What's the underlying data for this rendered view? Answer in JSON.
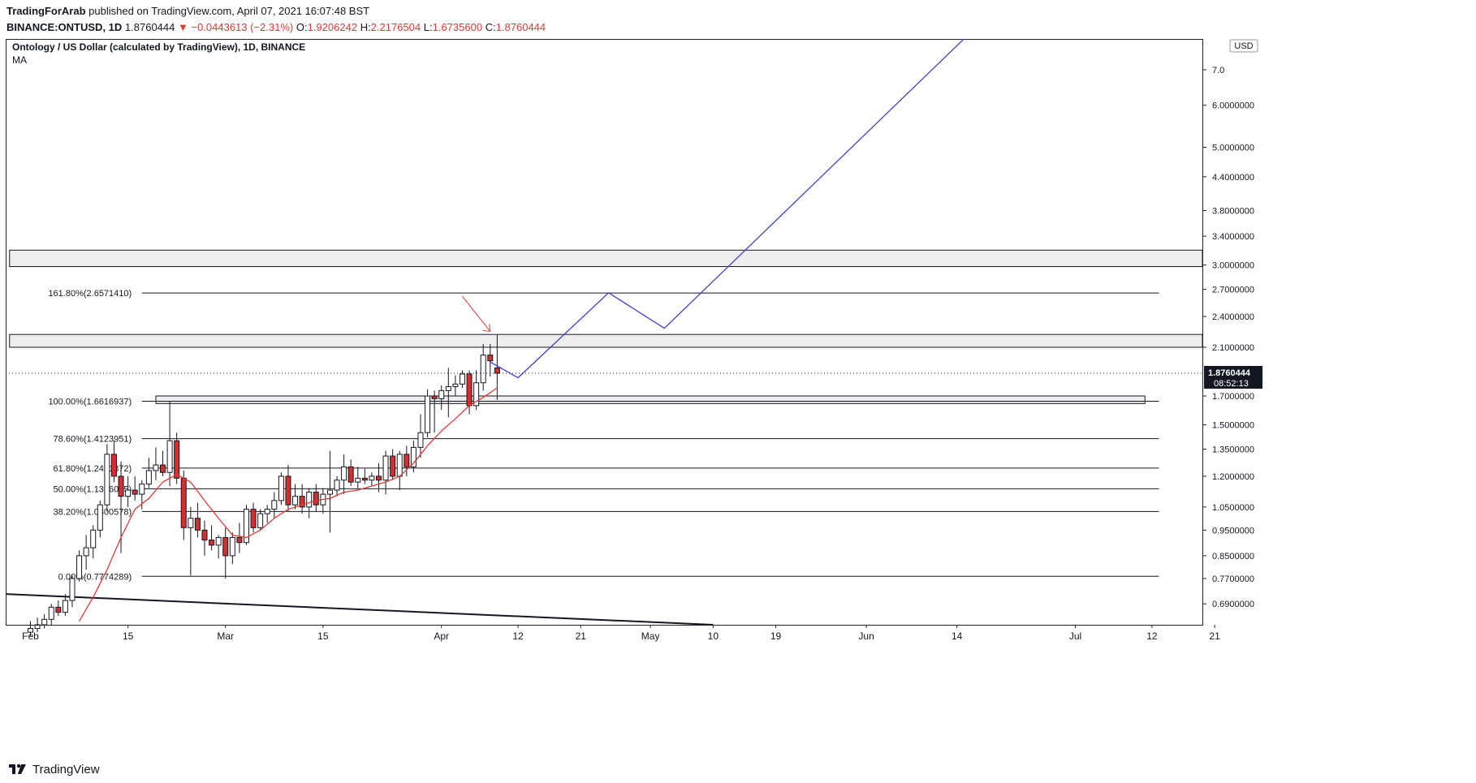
{
  "header": {
    "publisher": "TradingForArab",
    "published_text": "published on TradingView.com, April 07, 2021 16:07:48 BST",
    "symbol": "BINANCE:ONTUSD, 1D",
    "last": "1.8760444",
    "change": "▼ −0.0443613 (−2.31%)",
    "o_label": "O:",
    "o_value": "1.9206242",
    "h_label": "H:",
    "h_value": "2.2176504",
    "l_label": "L:",
    "l_value": "1.6735600",
    "c_label": "C:",
    "c_value": "1.8760444"
  },
  "legend": {
    "title": "Ontology / US Dollar (calculated by TradingView), 1D, BINANCE",
    "indicator": "MA"
  },
  "footer": {
    "brand": "TradingView"
  },
  "colors": {
    "up": "#ffffff",
    "down": "#d32f2f",
    "wick": "#131722",
    "ma": "#e53935",
    "projection": "#3f3fd6",
    "arrow": "#e53935",
    "fib": "#131722",
    "zone_fill": "#eeeeee",
    "price_badge": "#131722"
  },
  "chart_data": {
    "type": "candlestick",
    "symbol": "ONTUSD",
    "scale": "log",
    "ylim": [
      0.63,
      8.0
    ],
    "currency_label": "USD",
    "y_ticks": [
      7.0,
      6.0,
      5.0,
      4.4,
      3.8,
      3.4,
      3.0,
      2.7,
      2.4,
      2.1,
      1.7,
      1.5,
      1.35,
      1.2,
      1.05,
      0.95,
      0.85,
      0.77,
      0.69
    ],
    "y_tick_labels": [
      "7.0",
      "6.0000000",
      "5.0000000",
      "4.4000000",
      "3.8000000",
      "3.4000000",
      "3.0000000",
      "2.7000000",
      "2.4000000",
      "2.1000000",
      "1.7000000",
      "1.5000000",
      "1.3500000",
      "1.2000000",
      "1.0500000",
      "0.9500000",
      "0.8500000",
      "0.7700000",
      "0.6900000"
    ],
    "x_ticks": [
      {
        "date": "2021-02-01",
        "label": "Feb"
      },
      {
        "date": "2021-02-15",
        "label": "15"
      },
      {
        "date": "2021-03-01",
        "label": "Mar"
      },
      {
        "date": "2021-03-15",
        "label": "15"
      },
      {
        "date": "2021-04-01",
        "label": "Apr"
      },
      {
        "date": "2021-04-12",
        "label": "12"
      },
      {
        "date": "2021-04-21",
        "label": "21"
      },
      {
        "date": "2021-05-01",
        "label": "May"
      },
      {
        "date": "2021-05-10",
        "label": "10"
      },
      {
        "date": "2021-05-19",
        "label": "19"
      },
      {
        "date": "2021-06-01",
        "label": "Jun"
      },
      {
        "date": "2021-06-14",
        "label": "14"
      },
      {
        "date": "2021-07-01",
        "label": "Jul"
      },
      {
        "date": "2021-07-12",
        "label": "12"
      },
      {
        "date": "2021-07-21",
        "label": "21"
      }
    ],
    "last_price": {
      "value": 1.8760444,
      "label": "1.8760444",
      "countdown": "08:52:13"
    },
    "candles": [
      {
        "date": "2021-02-01",
        "o": 0.61,
        "h": 0.64,
        "l": 0.6,
        "c": 0.62
      },
      {
        "date": "2021-02-02",
        "o": 0.62,
        "h": 0.65,
        "l": 0.61,
        "c": 0.63
      },
      {
        "date": "2021-02-03",
        "o": 0.63,
        "h": 0.66,
        "l": 0.62,
        "c": 0.645
      },
      {
        "date": "2021-02-04",
        "o": 0.645,
        "h": 0.69,
        "l": 0.63,
        "c": 0.68
      },
      {
        "date": "2021-02-05",
        "o": 0.68,
        "h": 0.7,
        "l": 0.655,
        "c": 0.665
      },
      {
        "date": "2021-02-06",
        "o": 0.665,
        "h": 0.72,
        "l": 0.655,
        "c": 0.7
      },
      {
        "date": "2021-02-07",
        "o": 0.7,
        "h": 0.78,
        "l": 0.68,
        "c": 0.77
      },
      {
        "date": "2021-02-08",
        "o": 0.77,
        "h": 0.87,
        "l": 0.76,
        "c": 0.85
      },
      {
        "date": "2021-02-09",
        "o": 0.85,
        "h": 0.93,
        "l": 0.8,
        "c": 0.88
      },
      {
        "date": "2021-02-10",
        "o": 0.88,
        "h": 0.97,
        "l": 0.84,
        "c": 0.95
      },
      {
        "date": "2021-02-11",
        "o": 0.95,
        "h": 1.08,
        "l": 0.92,
        "c": 1.06
      },
      {
        "date": "2021-02-12",
        "o": 1.06,
        "h": 1.38,
        "l": 1.03,
        "c": 1.32
      },
      {
        "date": "2021-02-13",
        "o": 1.32,
        "h": 1.4,
        "l": 1.17,
        "c": 1.2
      },
      {
        "date": "2021-02-14",
        "o": 1.2,
        "h": 1.28,
        "l": 0.86,
        "c": 1.1
      },
      {
        "date": "2021-02-15",
        "o": 1.1,
        "h": 1.2,
        "l": 1.05,
        "c": 1.13
      },
      {
        "date": "2021-02-16",
        "o": 1.13,
        "h": 1.2,
        "l": 1.08,
        "c": 1.11
      },
      {
        "date": "2021-02-17",
        "o": 1.11,
        "h": 1.18,
        "l": 1.04,
        "c": 1.16
      },
      {
        "date": "2021-02-18",
        "o": 1.16,
        "h": 1.3,
        "l": 1.14,
        "c": 1.23
      },
      {
        "date": "2021-02-19",
        "o": 1.23,
        "h": 1.36,
        "l": 1.18,
        "c": 1.26
      },
      {
        "date": "2021-02-20",
        "o": 1.26,
        "h": 1.34,
        "l": 1.2,
        "c": 1.22
      },
      {
        "date": "2021-02-21",
        "o": 1.22,
        "h": 1.66,
        "l": 1.15,
        "c": 1.4
      },
      {
        "date": "2021-02-22",
        "o": 1.4,
        "h": 1.45,
        "l": 1.16,
        "c": 1.19
      },
      {
        "date": "2021-02-23",
        "o": 1.19,
        "h": 1.23,
        "l": 0.91,
        "c": 0.96
      },
      {
        "date": "2021-02-24",
        "o": 0.96,
        "h": 1.05,
        "l": 0.78,
        "c": 1.0
      },
      {
        "date": "2021-02-25",
        "o": 1.0,
        "h": 1.07,
        "l": 0.92,
        "c": 0.95
      },
      {
        "date": "2021-02-26",
        "o": 0.95,
        "h": 0.99,
        "l": 0.85,
        "c": 0.91
      },
      {
        "date": "2021-02-27",
        "o": 0.91,
        "h": 0.97,
        "l": 0.87,
        "c": 0.89
      },
      {
        "date": "2021-02-28",
        "o": 0.89,
        "h": 0.93,
        "l": 0.84,
        "c": 0.92
      },
      {
        "date": "2021-03-01",
        "o": 0.92,
        "h": 0.96,
        "l": 0.77,
        "c": 0.85
      },
      {
        "date": "2021-03-02",
        "o": 0.85,
        "h": 0.94,
        "l": 0.82,
        "c": 0.92
      },
      {
        "date": "2021-03-03",
        "o": 0.92,
        "h": 0.98,
        "l": 0.86,
        "c": 0.9
      },
      {
        "date": "2021-03-04",
        "o": 0.9,
        "h": 1.06,
        "l": 0.89,
        "c": 1.04
      },
      {
        "date": "2021-03-05",
        "o": 1.04,
        "h": 1.07,
        "l": 0.94,
        "c": 0.96
      },
      {
        "date": "2021-03-06",
        "o": 0.96,
        "h": 1.04,
        "l": 0.95,
        "c": 1.02
      },
      {
        "date": "2021-03-07",
        "o": 1.02,
        "h": 1.06,
        "l": 0.98,
        "c": 1.04
      },
      {
        "date": "2021-03-08",
        "o": 1.04,
        "h": 1.12,
        "l": 1.0,
        "c": 1.08
      },
      {
        "date": "2021-03-09",
        "o": 1.08,
        "h": 1.22,
        "l": 1.06,
        "c": 1.2
      },
      {
        "date": "2021-03-10",
        "o": 1.2,
        "h": 1.26,
        "l": 1.03,
        "c": 1.06
      },
      {
        "date": "2021-03-11",
        "o": 1.06,
        "h": 1.16,
        "l": 1.04,
        "c": 1.1
      },
      {
        "date": "2021-03-12",
        "o": 1.1,
        "h": 1.16,
        "l": 1.02,
        "c": 1.05
      },
      {
        "date": "2021-03-13",
        "o": 1.05,
        "h": 1.14,
        "l": 1.0,
        "c": 1.12
      },
      {
        "date": "2021-03-14",
        "o": 1.12,
        "h": 1.16,
        "l": 1.03,
        "c": 1.06
      },
      {
        "date": "2021-03-15",
        "o": 1.06,
        "h": 1.14,
        "l": 1.02,
        "c": 1.11
      },
      {
        "date": "2021-03-16",
        "o": 1.11,
        "h": 1.34,
        "l": 0.94,
        "c": 1.13
      },
      {
        "date": "2021-03-17",
        "o": 1.13,
        "h": 1.2,
        "l": 1.1,
        "c": 1.18
      },
      {
        "date": "2021-03-18",
        "o": 1.18,
        "h": 1.32,
        "l": 1.11,
        "c": 1.25
      },
      {
        "date": "2021-03-19",
        "o": 1.25,
        "h": 1.29,
        "l": 1.15,
        "c": 1.17
      },
      {
        "date": "2021-03-20",
        "o": 1.17,
        "h": 1.25,
        "l": 1.14,
        "c": 1.19
      },
      {
        "date": "2021-03-21",
        "o": 1.19,
        "h": 1.24,
        "l": 1.16,
        "c": 1.18
      },
      {
        "date": "2021-03-22",
        "o": 1.18,
        "h": 1.22,
        "l": 1.15,
        "c": 1.2
      },
      {
        "date": "2021-03-23",
        "o": 1.2,
        "h": 1.27,
        "l": 1.12,
        "c": 1.18
      },
      {
        "date": "2021-03-24",
        "o": 1.18,
        "h": 1.34,
        "l": 1.11,
        "c": 1.31
      },
      {
        "date": "2021-03-25",
        "o": 1.31,
        "h": 1.35,
        "l": 1.18,
        "c": 1.2
      },
      {
        "date": "2021-03-26",
        "o": 1.2,
        "h": 1.34,
        "l": 1.13,
        "c": 1.32
      },
      {
        "date": "2021-03-27",
        "o": 1.32,
        "h": 1.37,
        "l": 1.2,
        "c": 1.25
      },
      {
        "date": "2021-03-28",
        "o": 1.25,
        "h": 1.4,
        "l": 1.22,
        "c": 1.36
      },
      {
        "date": "2021-03-29",
        "o": 1.36,
        "h": 1.57,
        "l": 1.3,
        "c": 1.45
      },
      {
        "date": "2021-03-30",
        "o": 1.45,
        "h": 1.75,
        "l": 1.42,
        "c": 1.7
      },
      {
        "date": "2021-03-31",
        "o": 1.7,
        "h": 1.74,
        "l": 1.45,
        "c": 1.68
      },
      {
        "date": "2021-04-01",
        "o": 1.68,
        "h": 1.78,
        "l": 1.6,
        "c": 1.74
      },
      {
        "date": "2021-04-02",
        "o": 1.74,
        "h": 1.92,
        "l": 1.55,
        "c": 1.77
      },
      {
        "date": "2021-04-03",
        "o": 1.77,
        "h": 1.86,
        "l": 1.7,
        "c": 1.79
      },
      {
        "date": "2021-04-04",
        "o": 1.79,
        "h": 1.9,
        "l": 1.76,
        "c": 1.87
      },
      {
        "date": "2021-04-05",
        "o": 1.87,
        "h": 1.9,
        "l": 1.57,
        "c": 1.63
      },
      {
        "date": "2021-04-06",
        "o": 1.63,
        "h": 1.9,
        "l": 1.6,
        "c": 1.8
      },
      {
        "date": "2021-04-07",
        "o": 1.8,
        "h": 2.13,
        "l": 1.74,
        "c": 2.03
      },
      {
        "date": "2021-04-08",
        "o": 2.03,
        "h": 2.13,
        "l": 1.85,
        "c": 1.98
      },
      {
        "date": "2021-04-09",
        "o": 1.92,
        "h": 2.22,
        "l": 1.67,
        "c": 1.876
      }
    ],
    "moving_average": [
      {
        "date": "2021-02-08",
        "v": 0.64
      },
      {
        "date": "2021-02-10",
        "v": 0.71
      },
      {
        "date": "2021-02-12",
        "v": 0.8
      },
      {
        "date": "2021-02-14",
        "v": 0.92
      },
      {
        "date": "2021-02-16",
        "v": 1.04
      },
      {
        "date": "2021-02-18",
        "v": 1.09
      },
      {
        "date": "2021-02-20",
        "v": 1.17
      },
      {
        "date": "2021-02-22",
        "v": 1.21
      },
      {
        "date": "2021-02-24",
        "v": 1.17
      },
      {
        "date": "2021-02-26",
        "v": 1.08
      },
      {
        "date": "2021-02-28",
        "v": 1.0
      },
      {
        "date": "2021-03-02",
        "v": 0.93
      },
      {
        "date": "2021-03-04",
        "v": 0.92
      },
      {
        "date": "2021-03-06",
        "v": 0.95
      },
      {
        "date": "2021-03-08",
        "v": 1.0
      },
      {
        "date": "2021-03-10",
        "v": 1.04
      },
      {
        "date": "2021-03-12",
        "v": 1.06
      },
      {
        "date": "2021-03-14",
        "v": 1.08
      },
      {
        "date": "2021-03-16",
        "v": 1.09
      },
      {
        "date": "2021-03-18",
        "v": 1.12
      },
      {
        "date": "2021-03-20",
        "v": 1.13
      },
      {
        "date": "2021-03-22",
        "v": 1.15
      },
      {
        "date": "2021-03-24",
        "v": 1.17
      },
      {
        "date": "2021-03-26",
        "v": 1.2
      },
      {
        "date": "2021-03-28",
        "v": 1.27
      },
      {
        "date": "2021-03-30",
        "v": 1.37
      },
      {
        "date": "2021-04-01",
        "v": 1.46
      },
      {
        "date": "2021-04-03",
        "v": 1.54
      },
      {
        "date": "2021-04-05",
        "v": 1.63
      },
      {
        "date": "2021-04-07",
        "v": 1.69
      },
      {
        "date": "2021-04-09",
        "v": 1.76
      }
    ],
    "fib_levels": [
      {
        "label": "161.80%(2.6571410)",
        "value": 2.657141,
        "x_start": "2021-02-01",
        "x_end": "2021-07-13"
      },
      {
        "label": "100.00%(1.6616937)",
        "value": 1.6616937,
        "x_start": "2021-02-01",
        "x_end": "2021-07-13"
      },
      {
        "label": "78.60%(1.4123951)",
        "value": 1.4123951,
        "x_start": "2021-02-01",
        "x_end": "2021-07-13"
      },
      {
        "label": "61.80%(1.2431872)",
        "value": 1.2431872,
        "x_start": "2021-02-01",
        "x_end": "2021-07-13"
      },
      {
        "label": "50.00%(1.1366055)",
        "value": 1.1366055,
        "x_start": "2021-02-01",
        "x_end": "2021-07-13"
      },
      {
        "label": "38.20%(1.0300578)",
        "value": 1.0300578,
        "x_start": "2021-02-01",
        "x_end": "2021-07-13"
      },
      {
        "label": "0.00%(0.7774289)",
        "value": 0.7774289,
        "x_start": "2021-02-01",
        "x_end": "2021-07-13"
      }
    ],
    "zones": [
      {
        "name": "resistance-zone-upper",
        "low": 2.98,
        "high": 3.2,
        "x_start": "2021-01-29",
        "x_end": "2021-07-25"
      },
      {
        "name": "resistance-zone-lower",
        "low": 2.1,
        "high": 2.22,
        "x_start": "2021-01-29",
        "x_end": "2021-07-25"
      },
      {
        "name": "support-zone",
        "low": 1.645,
        "high": 1.7,
        "x_start": "2021-02-19",
        "x_end": "2021-07-11"
      }
    ],
    "projection_path": [
      {
        "date": "2021-04-08",
        "v": 1.97
      },
      {
        "date": "2021-04-12",
        "v": 1.84
      },
      {
        "date": "2021-04-25",
        "v": 2.66
      },
      {
        "date": "2021-05-03",
        "v": 2.28
      },
      {
        "date": "2021-06-15",
        "v": 8.0
      }
    ],
    "arrow": {
      "from": {
        "date": "2021-04-04",
        "v": 2.62
      },
      "to": {
        "date": "2021-04-08",
        "v": 2.25
      }
    },
    "trendline": {
      "from": {
        "date": "2021-01-29",
        "v": 0.72
      },
      "to": {
        "date": "2021-05-10",
        "v": 0.63
      }
    }
  }
}
